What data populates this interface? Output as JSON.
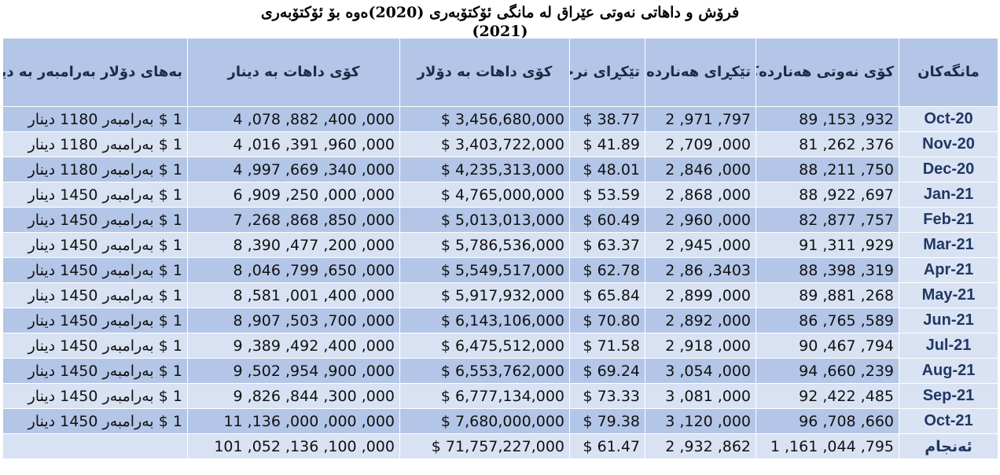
{
  "title": {
    "line1": "فرۆش و داهاتی نەوتی عێراق لە مانگی ئۆکتۆبەری (2020)ەوە بۆ ئۆکتۆبەری",
    "line2": "(2021)"
  },
  "headers": {
    "exchange": "بەهای دۆلار بەرامبەر بە دینار",
    "revenue_iqd": "کۆی داهات بە دینار",
    "revenue_usd": "کۆی داهات بە دۆلار",
    "avg_price": "تێکڕای نرخی نەوت",
    "avg_export": "تێکڕای هەناردەی بەرمیل/رۆژانە",
    "total_export": "کۆی نەوتی هەناردەکراو بەرمیل/مانگانە",
    "month": "مانگەکان"
  },
  "rows": [
    {
      "month": "Oct-20",
      "total_export": "89 ,153 ,932",
      "avg_export": "2 ,971 ,797",
      "avg_price": "$ 38.77",
      "revenue_usd": "$ 3,456,680,000",
      "revenue_iqd": "4 ,078 ,882 ,400 ,000",
      "exchange": "1 $ بەرامبەر 1180 دینار"
    },
    {
      "month": "Nov-20",
      "total_export": "81 ,262 ,376",
      "avg_export": "2 ,709 ,000",
      "avg_price": "$ 41.89",
      "revenue_usd": "$ 3,403,722,000",
      "revenue_iqd": "4 ,016 ,391 ,960 ,000",
      "exchange": "1 $ بەرامبەر 1180 دینار"
    },
    {
      "month": "Dec-20",
      "total_export": "88 ,211 ,750",
      "avg_export": "2 ,846 ,000",
      "avg_price": "$ 48.01",
      "revenue_usd": "$ 4,235,313,000",
      "revenue_iqd": "4 ,997 ,669 ,340 ,000",
      "exchange": "1 $ بەرامبەر 1180 دینار"
    },
    {
      "month": "Jan-21",
      "total_export": "88 ,922 ,697",
      "avg_export": "2 ,868 ,000",
      "avg_price": "$ 53.59",
      "revenue_usd": "$ 4,765,000,000",
      "revenue_iqd": "6 ,909 ,250 ,000 ,000",
      "exchange": "1 $ بەرامبەر 1450 دینار"
    },
    {
      "month": "Feb-21",
      "total_export": "82 ,877 ,757",
      "avg_export": "2 ,960 ,000",
      "avg_price": "$ 60.49",
      "revenue_usd": "$ 5,013,013,000",
      "revenue_iqd": "7 ,268 ,868 ,850 ,000",
      "exchange": "1 $ بەرامبەر 1450 دینار"
    },
    {
      "month": "Mar-21",
      "total_export": "91 ,311 ,929",
      "avg_export": "2 ,945 ,000",
      "avg_price": "$ 63.37",
      "revenue_usd": "$ 5,786,536,000",
      "revenue_iqd": "8 ,390 ,477 ,200 ,000",
      "exchange": "1 $ بەرامبەر 1450 دینار"
    },
    {
      "month": "Apr-21",
      "total_export": "88 ,398 ,319",
      "avg_export": "2 ,86 ,3403",
      "avg_price": "$ 62.78",
      "revenue_usd": "$ 5,549,517,000",
      "revenue_iqd": "8 ,046 ,799 ,650 ,000",
      "exchange": "1 $ بەرامبەر 1450 دینار"
    },
    {
      "month": "May-21",
      "total_export": "89 ,881 ,268",
      "avg_export": "2 ,899 ,000",
      "avg_price": "$ 65.84",
      "revenue_usd": "$ 5,917,932,000",
      "revenue_iqd": "8 ,581 ,001 ,400 ,000",
      "exchange": "1 $ بەرامبەر 1450 دینار"
    },
    {
      "month": "Jun-21",
      "total_export": "86 ,765 ,589",
      "avg_export": "2 ,892 ,000",
      "avg_price": "$ 70.80",
      "revenue_usd": "$ 6,143,106,000",
      "revenue_iqd": "8 ,907 ,503 ,700 ,000",
      "exchange": "1 $ بەرامبەر 1450 دینار"
    },
    {
      "month": "Jul-21",
      "total_export": "90 ,467 ,794",
      "avg_export": "2 ,918 ,000",
      "avg_price": "$ 71.58",
      "revenue_usd": "$ 6,475,512,000",
      "revenue_iqd": "9 ,389 ,492 ,400 ,000",
      "exchange": "1 $ بەرامبەر 1450 دینار"
    },
    {
      "month": "Aug-21",
      "total_export": "94 ,660 ,239",
      "avg_export": "3 ,054 ,000",
      "avg_price": "$ 69.24",
      "revenue_usd": "$ 6,553,762,000",
      "revenue_iqd": "9 ,502 ,954 ,900 ,000",
      "exchange": "1 $ بەرامبەر 1450 دینار"
    },
    {
      "month": "Sep-21",
      "total_export": "92 ,422 ,485",
      "avg_export": "3 ,081 ,000",
      "avg_price": "$ 73.33",
      "revenue_usd": "$ 6,777,134,000",
      "revenue_iqd": "9 ,826 ,844 ,300 ,000",
      "exchange": "1 $ بەرامبەر 1450 دینار"
    },
    {
      "month": "Oct-21",
      "total_export": "96 ,708 ,660",
      "avg_export": "3 ,120 ,000",
      "avg_price": "$ 79.38",
      "revenue_usd": "$ 7,680,000,000",
      "revenue_iqd": "11 ,136 ,000 ,000 ,000",
      "exchange": "1 $ بەرامبەر 1450 دینار"
    }
  ],
  "total": {
    "month": "ئەنجام",
    "total_export": "1 ,161 ,044 ,795",
    "avg_export": "2 ,932 ,862",
    "avg_price": "$ 61.47",
    "revenue_usd": "$ 71,757,227,000",
    "revenue_iqd": "101 ,052 ,136 ,100 ,000",
    "exchange": ""
  },
  "colors": {
    "header_bg": "#b4c6e7",
    "row_dark": "#b4c6e7",
    "row_light": "#d9e2f3",
    "month_text": "#203864"
  }
}
